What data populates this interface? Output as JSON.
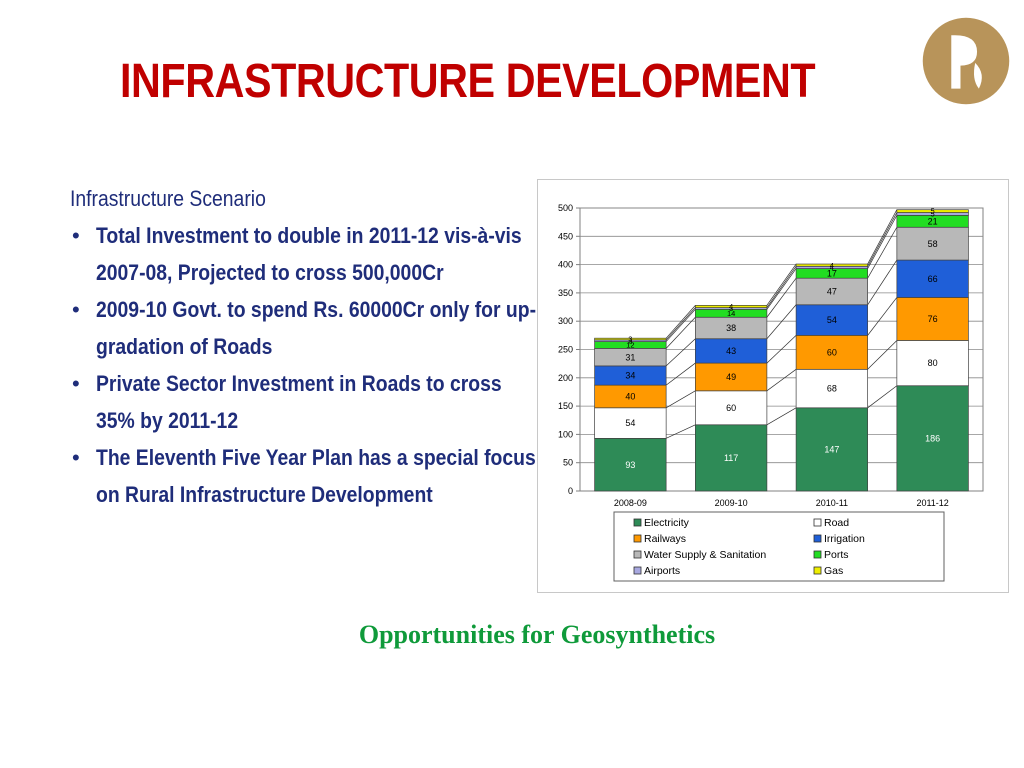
{
  "title": "INFRASTRUCTURE DEVELOPMENT",
  "logo_icon": "reliance-flame-logo",
  "text_block": {
    "heading": "Infrastructure Scenario",
    "bullets": [
      "Total Investment to double in 2011-12 vis-à-vis 2007-08, Projected to cross 500,000Cr",
      "2009-10 Govt. to spend Rs. 60000Cr only for up-gradation of Roads",
      "Private Sector Investment in Roads to cross 35% by 2011-12",
      "The Eleventh Five Year Plan has a special focus on Rural Infrastructure Development"
    ]
  },
  "subtitle": "Opportunities for Geosynthetics",
  "colors": {
    "title": "#c00000",
    "body_text": "#1f2d7a",
    "subtitle": "#0f9a3a"
  },
  "chart_data": {
    "type": "bar",
    "stacked": true,
    "categories": [
      "2008-09",
      "2009-10",
      "2010-11",
      "2011-12"
    ],
    "ylim": [
      0,
      500
    ],
    "yticks": [
      "0",
      "50",
      "100",
      "150",
      "200",
      "250",
      "300",
      "350",
      "400",
      "450",
      "500"
    ],
    "grid": true,
    "legend_position": "bottom",
    "series": [
      {
        "name": "Electricity",
        "color": "#2e8b57",
        "values": [
          93,
          117,
          147,
          186
        ],
        "labels": [
          "93",
          "117",
          "147",
          "186"
        ]
      },
      {
        "name": "Road",
        "color": "#ffffff",
        "values": [
          54,
          60,
          68,
          80
        ],
        "labels": [
          "54",
          "60",
          "68",
          "80"
        ]
      },
      {
        "name": "Railways",
        "color": "#ff9900",
        "values": [
          40,
          49,
          60,
          76
        ],
        "labels": [
          "40",
          "49",
          "60",
          "76"
        ]
      },
      {
        "name": "Irrigation",
        "color": "#1f5fd8",
        "values": [
          34,
          43,
          54,
          66
        ],
        "labels": [
          "34",
          "43",
          "54",
          "66"
        ]
      },
      {
        "name": "Water Supply & Sanitation",
        "color": "#b8b8b8",
        "values": [
          31,
          38,
          47,
          58
        ],
        "labels": [
          "31",
          "38",
          "47",
          "58"
        ]
      },
      {
        "name": "Ports",
        "color": "#22dd22",
        "values": [
          12,
          14,
          17,
          21
        ],
        "labels": [
          "12",
          "14",
          "17",
          "21"
        ]
      },
      {
        "name": "Airports",
        "color": "#a8a8e0",
        "values": [
          3,
          3,
          4,
          5
        ],
        "labels": [
          "3",
          "3",
          "4",
          "5"
        ]
      },
      {
        "name": "Gas",
        "color": "#eeee00",
        "values": [
          3,
          4,
          4,
          5
        ],
        "labels": [
          "3",
          "4",
          "4",
          "5"
        ]
      }
    ]
  }
}
